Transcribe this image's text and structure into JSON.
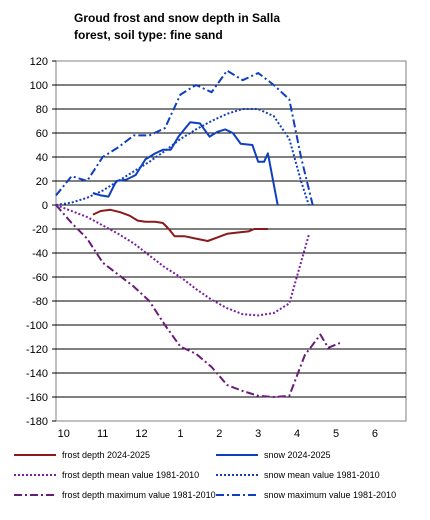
{
  "title": {
    "line1": "Groud frost and snow depth in Salla",
    "line2": "forest, soil type: fine sand"
  },
  "chart_data": {
    "type": "line",
    "title": "Groud frost and snow depth in Salla forest, soil type: fine sand",
    "xlabel": "",
    "ylabel": "",
    "x_tick_labels": [
      "10",
      "11",
      "12",
      "1",
      "2",
      "3",
      "4",
      "5",
      "6"
    ],
    "xlim": [
      0,
      9
    ],
    "ylim": [
      -180,
      120
    ],
    "y_ticks": [
      120,
      100,
      80,
      60,
      40,
      20,
      0,
      -20,
      -40,
      -60,
      -80,
      -100,
      -120,
      -140,
      -160,
      -180
    ],
    "grid": "horizontal",
    "legend_position": "bottom",
    "series": [
      {
        "name": "frost depth 2024-2025",
        "color": "#8b1a1a",
        "style": "solid",
        "width": 2,
        "x": [
          0.95,
          1.15,
          1.4,
          1.65,
          1.9,
          2.1,
          2.3,
          2.55,
          2.75,
          2.9,
          3.05,
          3.3,
          3.6,
          3.9,
          4.15,
          4.4,
          4.65,
          4.95,
          5.1,
          5.35,
          5.45
        ],
        "y": [
          -8,
          -5,
          -4,
          -6,
          -9,
          -13,
          -14,
          -14,
          -15,
          -20,
          -26,
          -26,
          -28,
          -30,
          -27,
          -24,
          -23,
          -22,
          -20,
          -20,
          -20
        ]
      },
      {
        "name": "snow 2024-2025",
        "color": "#0f3fbf",
        "style": "solid",
        "width": 2,
        "x": [
          0.95,
          1.15,
          1.35,
          1.55,
          1.8,
          2.05,
          2.3,
          2.55,
          2.75,
          2.95,
          3.15,
          3.45,
          3.7,
          3.95,
          4.15,
          4.35,
          4.55,
          4.75,
          5.05,
          5.2,
          5.35,
          5.45,
          5.7
        ],
        "y": [
          10,
          8,
          7,
          20,
          21,
          25,
          38,
          43,
          46,
          46,
          57,
          69,
          68,
          57,
          61,
          63,
          60,
          51,
          50,
          36,
          36,
          43,
          0
        ]
      },
      {
        "name": "frost depth mean value 1981-2010",
        "color": "#7b1fa2",
        "style": "dotted",
        "width": 2,
        "x": [
          0.0,
          0.4,
          0.8,
          1.2,
          1.6,
          2.0,
          2.4,
          2.8,
          3.2,
          3.6,
          4.0,
          4.4,
          4.8,
          5.2,
          5.6,
          6.0,
          6.5
        ],
        "y": [
          0,
          -5,
          -10,
          -17,
          -24,
          -32,
          -42,
          -52,
          -60,
          -70,
          -79,
          -86,
          -91,
          -92,
          -90,
          -82,
          -25
        ]
      },
      {
        "name": "snow mean value 1981-2010",
        "color": "#0f3fbf",
        "style": "dotted",
        "width": 2,
        "x": [
          0.0,
          0.4,
          0.8,
          1.2,
          1.6,
          2.0,
          2.4,
          2.8,
          3.2,
          3.6,
          4.0,
          4.4,
          4.8,
          5.2,
          5.6,
          6.0,
          6.3,
          6.5
        ],
        "y": [
          0,
          2,
          6,
          12,
          20,
          28,
          36,
          45,
          55,
          63,
          70,
          76,
          80,
          80,
          74,
          55,
          20,
          0
        ]
      },
      {
        "name": "frost depth maximum value 1981-2010",
        "color": "#6a1b7a",
        "style": "dashdot",
        "width": 2,
        "x": [
          0.0,
          0.4,
          0.8,
          1.2,
          1.6,
          2.0,
          2.4,
          2.8,
          3.2,
          3.6,
          4.0,
          4.4,
          4.8,
          5.2,
          5.6,
          6.0,
          6.4,
          6.8,
          7.0,
          7.3
        ],
        "y": [
          0,
          -15,
          -28,
          -48,
          -58,
          -68,
          -80,
          -100,
          -118,
          -124,
          -135,
          -150,
          -155,
          -159,
          -160,
          -159,
          -125,
          -108,
          -119,
          -115
        ]
      },
      {
        "name": "snow maximum value 1981-2010",
        "color": "#0f3fbf",
        "style": "dashdot",
        "width": 2,
        "x": [
          0.0,
          0.4,
          0.8,
          1.2,
          1.6,
          2.0,
          2.4,
          2.8,
          3.2,
          3.6,
          4.0,
          4.4,
          4.8,
          5.2,
          5.6,
          6.0,
          6.3,
          6.6
        ],
        "y": [
          8,
          24,
          20,
          40,
          48,
          58,
          58,
          64,
          92,
          100,
          94,
          112,
          104,
          110,
          100,
          88,
          40,
          0
        ]
      }
    ]
  }
}
